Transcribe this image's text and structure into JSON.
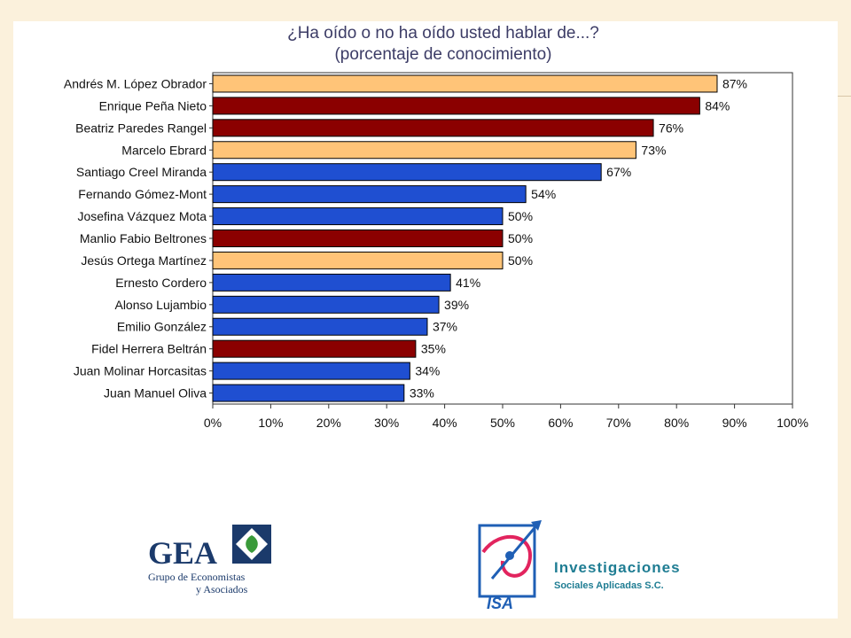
{
  "chart_data": {
    "type": "bar",
    "orientation": "horizontal",
    "title": "¿Ha oído o no ha oído usted hablar de...?",
    "subtitle": "(porcentaje de conocimiento)",
    "categories": [
      "Andrés M. López Obrador",
      "Enrique Peña Nieto",
      "Beatriz Paredes Rangel",
      "Marcelo Ebrard",
      "Santiago Creel Miranda",
      "Fernando Gómez-Mont",
      "Josefina Vázquez Mota",
      "Manlio Fabio Beltrones",
      "Jesús Ortega Martínez",
      "Ernesto Cordero",
      "Alonso Lujambio",
      "Emilio González",
      "Fidel Herrera Beltrán",
      "Juan Molinar Horcasitas",
      "Juan Manuel Oliva"
    ],
    "values": [
      87,
      84,
      76,
      73,
      67,
      54,
      50,
      50,
      50,
      41,
      39,
      37,
      35,
      34,
      33
    ],
    "value_labels": [
      "87%",
      "84%",
      "76%",
      "73%",
      "67%",
      "54%",
      "50%",
      "50%",
      "50%",
      "41%",
      "39%",
      "37%",
      "35%",
      "34%",
      "33%"
    ],
    "bar_colors": [
      "#ffc478",
      "#8b0000",
      "#8b0000",
      "#ffc478",
      "#1f4fd1",
      "#1f4fd1",
      "#1f4fd1",
      "#8b0000",
      "#ffc478",
      "#1f4fd1",
      "#1f4fd1",
      "#1f4fd1",
      "#8b0000",
      "#1f4fd1",
      "#1f4fd1"
    ],
    "xlim": [
      0,
      100
    ],
    "xticks": [
      "0%",
      "10%",
      "20%",
      "30%",
      "40%",
      "50%",
      "60%",
      "70%",
      "80%",
      "90%",
      "100%"
    ],
    "grid": false
  },
  "logos": {
    "gea": {
      "name": "GEA",
      "line1": "Grupo de Economistas",
      "line2": "y Asociados"
    },
    "isa": {
      "mark": "ISA",
      "title": "Investigaciones",
      "subtitle": "Sociales Aplicadas S.C."
    }
  },
  "colors": {
    "background": "#fbf1dc",
    "frame": "#333333"
  }
}
